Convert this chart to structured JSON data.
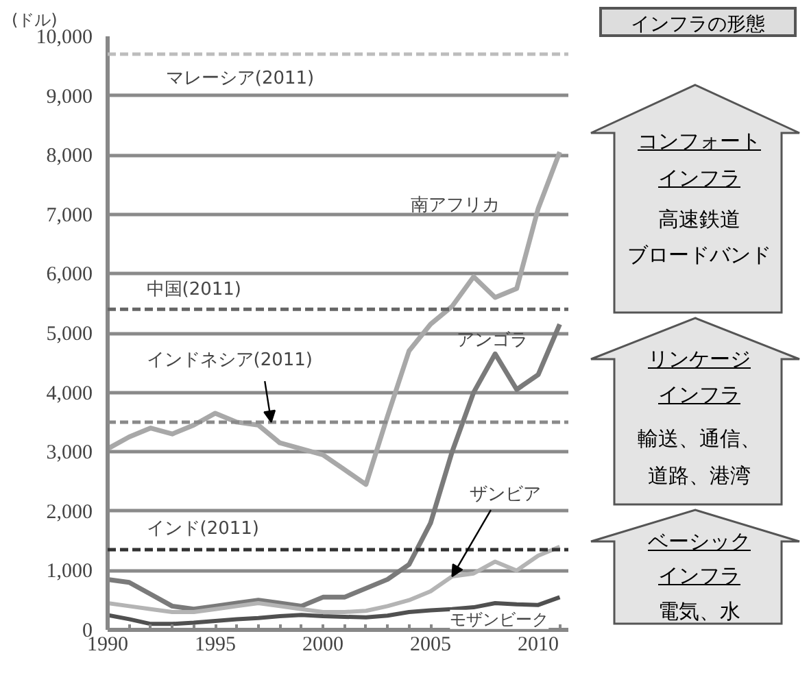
{
  "chart_data": [
    {
      "type": "line",
      "ylabel": "(ドル)",
      "x": [
        1990,
        1991,
        1992,
        1993,
        1994,
        1995,
        1996,
        1997,
        1998,
        1999,
        2000,
        2001,
        2002,
        2003,
        2004,
        2005,
        2006,
        2007,
        2008,
        2009,
        2010,
        2011
      ],
      "series": [
        {
          "name": "南アフリカ",
          "color": "#a8a8a8",
          "values": [
            3050,
            3250,
            3400,
            3300,
            3450,
            3650,
            3500,
            3450,
            3150,
            3050,
            2950,
            2700,
            2450,
            3600,
            4700,
            5150,
            5450,
            5950,
            5600,
            5750,
            7100,
            8050
          ]
        },
        {
          "name": "アンゴラ",
          "color": "#7a7a7a",
          "values": [
            850,
            800,
            600,
            400,
            350,
            400,
            450,
            500,
            450,
            400,
            550,
            550,
            700,
            850,
            1100,
            1800,
            3000,
            4000,
            4650,
            4050,
            4300,
            5150
          ]
        },
        {
          "name": "ザンビア",
          "color": "#b4b4b4",
          "values": [
            450,
            400,
            350,
            300,
            300,
            350,
            400,
            450,
            400,
            350,
            300,
            300,
            320,
            400,
            500,
            650,
            900,
            950,
            1150,
            1000,
            1250,
            1400
          ]
        },
        {
          "name": "モザンビーク",
          "color": "#505050",
          "values": [
            250,
            180,
            100,
            100,
            120,
            150,
            180,
            200,
            230,
            250,
            230,
            220,
            210,
            240,
            300,
            330,
            350,
            380,
            450,
            430,
            420,
            550
          ]
        }
      ],
      "ref_lines": [
        {
          "axis": "y",
          "value": 9700,
          "label": "マレーシア(2011)",
          "color": "#bdbdbd",
          "line_style": "dashed"
        },
        {
          "axis": "y",
          "value": 5400,
          "label": "中国(2011)",
          "color": "#666666",
          "line_style": "dashed"
        },
        {
          "axis": "y",
          "value": 3500,
          "label": "インドネシア(2011)",
          "color": "#8a8a8a",
          "line_style": "dashed"
        },
        {
          "axis": "y",
          "value": 1350,
          "label": "インド(2011)",
          "color": "#333333",
          "line_style": "dashed"
        }
      ],
      "xlim": [
        1990,
        2011.4
      ],
      "xticks": [
        1990,
        {
          "value": 1991,
          "label": null
        },
        {
          "value": 1992,
          "label": null
        },
        {
          "value": 1993,
          "label": null
        },
        {
          "value": 1994,
          "label": null
        },
        1995,
        {
          "value": 1996,
          "label": null
        },
        {
          "value": 1997,
          "label": null
        },
        {
          "value": 1998,
          "label": null
        },
        {
          "value": 1999,
          "label": null
        },
        2000,
        {
          "value": 2001,
          "label": null
        },
        {
          "value": 2002,
          "label": null
        },
        {
          "value": 2003,
          "label": null
        },
        {
          "value": 2004,
          "label": null
        },
        2005,
        {
          "value": 2006,
          "label": null
        },
        {
          "value": 2007,
          "label": null
        },
        {
          "value": 2008,
          "label": null
        },
        {
          "value": 2009,
          "label": null
        },
        2010,
        {
          "value": 2011,
          "label": null
        }
      ],
      "ylim": [
        0,
        10000
      ],
      "yticks": [
        0,
        {
          "value": 1000,
          "label": "1,000"
        },
        {
          "value": 2000,
          "label": "2,000"
        },
        {
          "value": 3000,
          "label": "3,000"
        },
        {
          "value": 4000,
          "label": "4,000"
        },
        {
          "value": 5000,
          "label": "5,000"
        },
        {
          "value": 6000,
          "label": "6,000"
        },
        {
          "value": 7000,
          "label": "7,000"
        },
        {
          "value": 8000,
          "label": "8,000"
        },
        {
          "value": 9000,
          "label": "9,000"
        },
        {
          "value": 10000,
          "label": "10,000"
        }
      ],
      "grid": "y",
      "marker": "none",
      "line_style": "solid"
    },
    {
      "type": "other",
      "title": "インフラの形態",
      "annotations": [
        "コンフォート",
        "インフラ",
        "高速鉄道",
        "ブロードバンド",
        "リンケージ",
        "インフラ",
        "輸送、通信、",
        "道路、港湾",
        "ベーシック",
        "インフラ",
        "電気、水"
      ]
    }
  ]
}
